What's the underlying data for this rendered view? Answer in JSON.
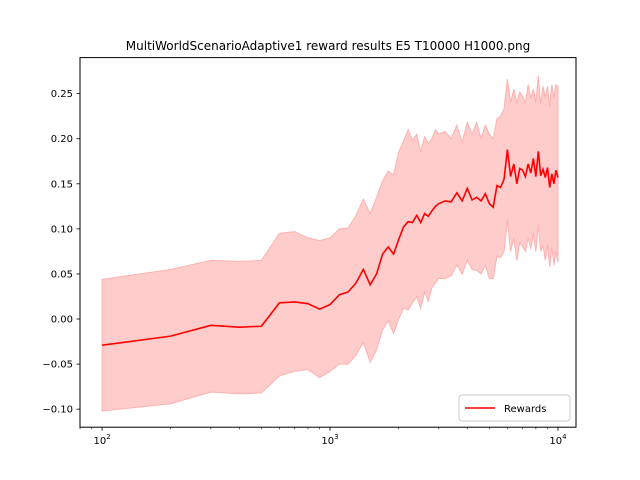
{
  "chart_data": {
    "type": "line",
    "title": "MultiWorldScenarioAdaptive1 reward results E5 T10000 H1000.png",
    "xlabel": "",
    "ylabel": "",
    "xscale": "log",
    "xlim": [
      80,
      12000
    ],
    "ylim": [
      -0.12,
      0.29
    ],
    "yticks": [
      -0.1,
      -0.05,
      0.0,
      0.05,
      0.1,
      0.15,
      0.2,
      0.25
    ],
    "ytick_labels": [
      "−0.10",
      "−0.05",
      "0.00",
      "0.05",
      "0.10",
      "0.15",
      "0.20",
      "0.25"
    ],
    "xticks": [
      100,
      1000,
      10000
    ],
    "xtick_labels": [
      {
        "base": "10",
        "exp": "2"
      },
      {
        "base": "10",
        "exp": "3"
      },
      {
        "base": "10",
        "exp": "4"
      }
    ],
    "legend": {
      "position": "lower-right",
      "entries": [
        "Rewards"
      ]
    },
    "grid": false,
    "series": [
      {
        "name": "Rewards",
        "color": "#ff0000",
        "band_color": "#ffcccc",
        "band_edge_color": "#ffb0b0",
        "x": [
          100,
          200,
          300,
          400,
          500,
          600,
          700,
          800,
          900,
          1000,
          1100,
          1200,
          1300,
          1400,
          1500,
          1600,
          1700,
          1800,
          1900,
          2000,
          2100,
          2200,
          2300,
          2400,
          2500,
          2600,
          2700,
          2800,
          2900,
          3000,
          3200,
          3400,
          3600,
          3800,
          4000,
          4200,
          4400,
          4600,
          4800,
          5000,
          5200,
          5400,
          5600,
          5800,
          6000,
          6200,
          6400,
          6600,
          6800,
          7000,
          7200,
          7400,
          7600,
          7800,
          8000,
          8200,
          8400,
          8600,
          8800,
          9000,
          9200,
          9400,
          9600,
          9800,
          10000
        ],
        "y": [
          -0.029,
          -0.019,
          -0.007,
          -0.009,
          -0.008,
          0.018,
          0.019,
          0.017,
          0.011,
          0.016,
          0.027,
          0.03,
          0.04,
          0.055,
          0.038,
          0.05,
          0.072,
          0.08,
          0.072,
          0.088,
          0.102,
          0.108,
          0.107,
          0.115,
          0.107,
          0.117,
          0.114,
          0.12,
          0.125,
          0.128,
          0.131,
          0.13,
          0.14,
          0.131,
          0.145,
          0.132,
          0.135,
          0.131,
          0.139,
          0.128,
          0.124,
          0.148,
          0.146,
          0.155,
          0.188,
          0.158,
          0.172,
          0.15,
          0.167,
          0.165,
          0.158,
          0.172,
          0.162,
          0.178,
          0.158,
          0.186,
          0.159,
          0.166,
          0.157,
          0.168,
          0.146,
          0.161,
          0.15,
          0.165,
          0.157
        ],
        "upper": [
          0.044,
          0.055,
          0.065,
          0.064,
          0.065,
          0.095,
          0.097,
          0.09,
          0.087,
          0.09,
          0.1,
          0.101,
          0.115,
          0.133,
          0.117,
          0.135,
          0.153,
          0.164,
          0.16,
          0.185,
          0.197,
          0.21,
          0.198,
          0.205,
          0.185,
          0.202,
          0.195,
          0.2,
          0.21,
          0.205,
          0.208,
          0.2,
          0.215,
          0.196,
          0.218,
          0.205,
          0.218,
          0.2,
          0.215,
          0.205,
          0.2,
          0.222,
          0.225,
          0.233,
          0.266,
          0.24,
          0.255,
          0.24,
          0.252,
          0.247,
          0.24,
          0.26,
          0.245,
          0.255,
          0.24,
          0.27,
          0.238,
          0.258,
          0.245,
          0.258,
          0.235,
          0.26,
          0.245,
          0.26,
          0.258
        ],
        "lower": [
          -0.102,
          -0.094,
          -0.081,
          -0.083,
          -0.082,
          -0.063,
          -0.058,
          -0.056,
          -0.065,
          -0.058,
          -0.05,
          -0.05,
          -0.04,
          -0.026,
          -0.048,
          -0.034,
          -0.012,
          -0.002,
          -0.016,
          0.0,
          0.012,
          0.01,
          0.018,
          0.025,
          0.012,
          0.03,
          0.02,
          0.035,
          0.04,
          0.045,
          0.045,
          0.048,
          0.06,
          0.05,
          0.065,
          0.055,
          0.054,
          0.05,
          0.06,
          0.045,
          0.045,
          0.07,
          0.068,
          0.075,
          0.11,
          0.075,
          0.09,
          0.065,
          0.085,
          0.08,
          0.075,
          0.09,
          0.078,
          0.095,
          0.075,
          0.105,
          0.075,
          0.082,
          0.065,
          0.083,
          0.058,
          0.08,
          0.06,
          0.075,
          0.063
        ]
      }
    ]
  }
}
